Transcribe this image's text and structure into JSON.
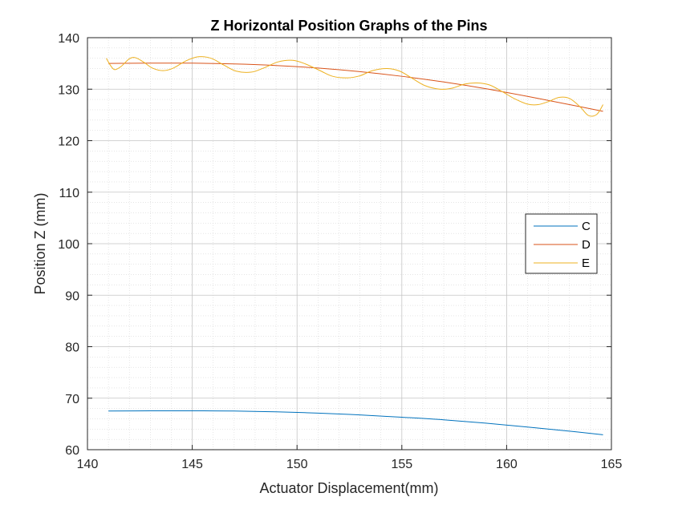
{
  "chart_data": {
    "type": "line",
    "title": "Z Horizontal Position Graphs of the Pins",
    "xlabel": "Actuator Displacement(mm)",
    "ylabel": "Position Z (mm)",
    "xlim": [
      140,
      165
    ],
    "ylim": [
      60,
      140
    ],
    "xticks": [
      140,
      145,
      150,
      155,
      160,
      165
    ],
    "yticks": [
      60,
      70,
      80,
      90,
      100,
      110,
      120,
      130,
      140
    ],
    "grid": true,
    "minor_grid": true,
    "legend_position": "right",
    "series": [
      {
        "name": "C",
        "color": "#0072BD",
        "x": [
          141,
          143,
          145,
          147,
          149,
          151,
          153,
          155,
          157,
          159,
          161,
          163,
          164.6
        ],
        "y": [
          67.5,
          67.55,
          67.55,
          67.5,
          67.35,
          67.1,
          66.75,
          66.3,
          65.8,
          65.15,
          64.4,
          63.6,
          62.9
        ]
      },
      {
        "name": "D",
        "color": "#D95319",
        "x": [
          141,
          143,
          145,
          147,
          149,
          151,
          153,
          155,
          157,
          159,
          161,
          163,
          164.6
        ],
        "y": [
          135,
          135.05,
          135.05,
          134.9,
          134.6,
          134.1,
          133.4,
          132.5,
          131.4,
          130.1,
          128.6,
          127,
          125.7
        ]
      },
      {
        "name": "E",
        "color": "#EDB120",
        "x": [
          140.9,
          141.1,
          141.3,
          141.6,
          142,
          142.3,
          142.7,
          143.1,
          143.6,
          144.1,
          144.7,
          145.3,
          145.9,
          146.5,
          147.1,
          147.8,
          148.4,
          149.1,
          149.8,
          150.4,
          151.1,
          151.7,
          152.4,
          153,
          153.6,
          154.3,
          154.9,
          155.5,
          156.1,
          156.8,
          157.4,
          158,
          158.6,
          159.2,
          159.8,
          160.4,
          161,
          161.5,
          162,
          162.5,
          163,
          163.5,
          163.9,
          164.3,
          164.6
        ],
        "y": [
          136,
          134.6,
          133.8,
          134.4,
          135.9,
          136.1,
          135.2,
          134.1,
          133.6,
          134.1,
          135.5,
          136.3,
          136.0,
          134.7,
          133.5,
          133.3,
          134.1,
          135.3,
          135.6,
          134.9,
          133.6,
          132.5,
          132.2,
          132.6,
          133.6,
          134.0,
          133.5,
          132.1,
          130.7,
          130.0,
          130.2,
          131.0,
          131.2,
          130.8,
          129.5,
          128.1,
          127.1,
          127.0,
          127.6,
          128.4,
          128.2,
          126.6,
          124.9,
          125.1,
          127.0
        ]
      }
    ]
  }
}
